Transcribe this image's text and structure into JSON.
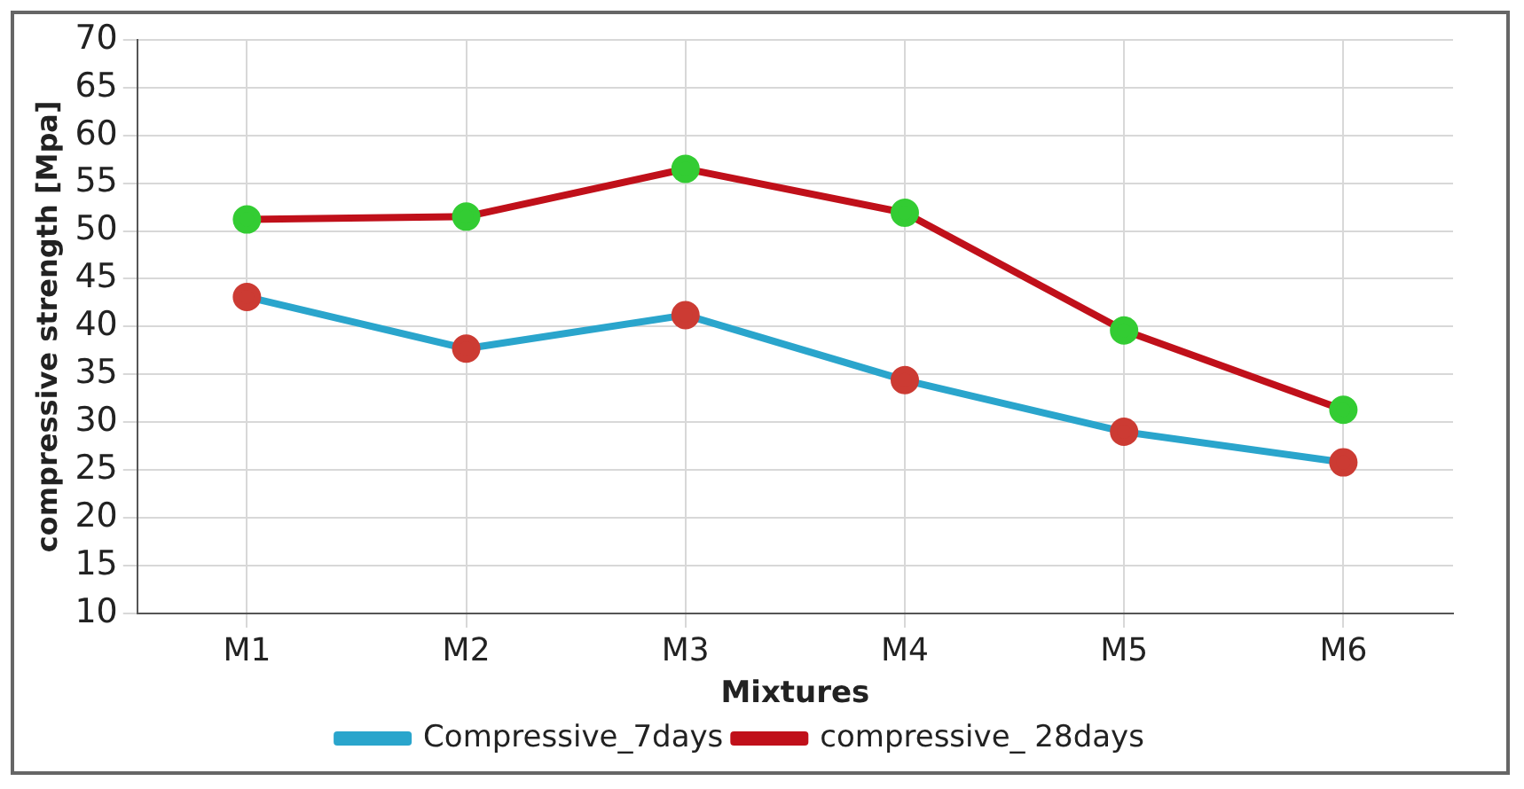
{
  "chart_data": {
    "type": "line",
    "xlabel": "Mixtures",
    "ylabel": "compressive strength [Mpa]",
    "categories": [
      "M1",
      "M2",
      "M3",
      "M4",
      "M5",
      "M6"
    ],
    "series": [
      {
        "name": "Compressive_7days",
        "color": "#2aa5cc",
        "colors": [
          "#cc3b33",
          "#cc3b33",
          "#cc3b33",
          "#cc3b33",
          "#cc3b33",
          "#cc3b33"
        ],
        "values": [
          43.1,
          37.7,
          41.2,
          34.4,
          29.0,
          25.8
        ]
      },
      {
        "name": "compressive_ 28days",
        "color": "#c0101a",
        "colors": [
          "#33cc33",
          "#33cc33",
          "#33cc33",
          "#33cc33",
          "#33cc33",
          "#33cc33"
        ],
        "values": [
          51.2,
          51.5,
          56.5,
          51.9,
          39.6,
          31.3
        ]
      }
    ],
    "ylim": [
      10,
      70
    ],
    "yticks": [
      10,
      15,
      20,
      25,
      30,
      35,
      40,
      45,
      50,
      55,
      60,
      65,
      70
    ],
    "grid": true,
    "legend": "bottom",
    "marker": "circle",
    "line_style": "solid"
  }
}
